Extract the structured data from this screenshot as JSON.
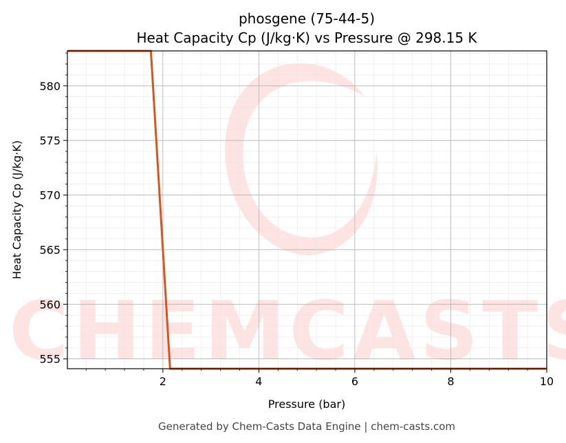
{
  "chart_data": {
    "type": "line",
    "title": "phosgene (75-44-5)",
    "subtitle": "Heat Capacity Cp (J/kg·K) vs Pressure @ 298.15 K",
    "xlabel": "Pressure (bar)",
    "ylabel": "Heat Capacity Cp (J/kg·K)",
    "xlim": [
      0.01,
      10
    ],
    "ylim": [
      554.1,
      583.2
    ],
    "x_ticks": [
      2,
      4,
      6,
      8,
      10
    ],
    "y_ticks": [
      555,
      560,
      565,
      570,
      575,
      580
    ],
    "grid": true,
    "line_color": "#d9531e",
    "series": [
      {
        "x": [
          0.01,
          1.0,
          1.75,
          2.15,
          3.0,
          6.0,
          10.0
        ],
        "values": [
          583.2,
          583.2,
          583.2,
          554.1,
          554.1,
          554.1,
          554.1
        ]
      }
    ]
  },
  "watermark": "CHEMCASTS",
  "footer": "Generated by Chem-Casts Data Engine | chem-casts.com"
}
